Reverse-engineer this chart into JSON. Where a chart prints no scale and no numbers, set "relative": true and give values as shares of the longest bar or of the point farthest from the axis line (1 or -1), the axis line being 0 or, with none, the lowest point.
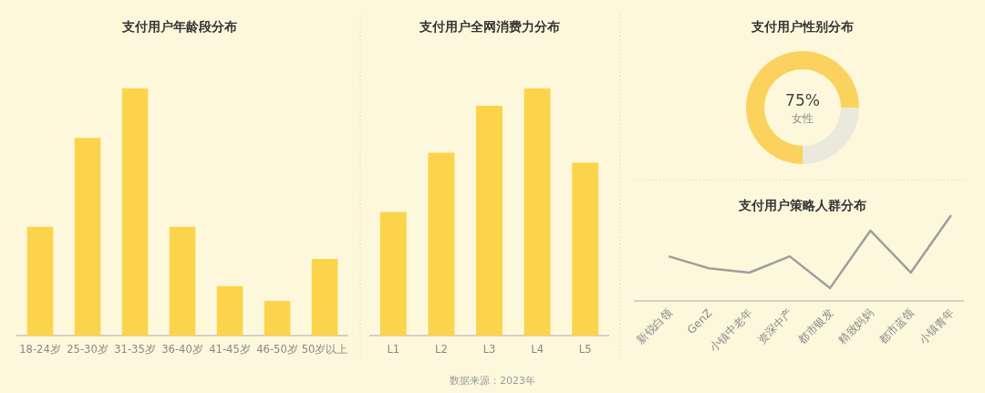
{
  "chart_data": [
    {
      "type": "bar",
      "title": "支付用户年龄段分布",
      "categories": [
        "18-24岁",
        "25-30岁",
        "31-35岁",
        "36-40岁",
        "41-45岁",
        "46-50岁",
        "50岁以上"
      ],
      "values": [
        0.44,
        0.8,
        1,
        0.44,
        0.2,
        0.14,
        0.31
      ],
      "color": "#fcd44c",
      "relative": true
    },
    {
      "type": "bar",
      "title": "支付用户全网消费力分布",
      "categories": [
        "L1",
        "L2",
        "L3",
        "L4",
        "L5"
      ],
      "values": [
        0.5,
        0.74,
        0.93,
        1,
        0.7
      ],
      "color": "#fcd44c",
      "relative": true,
      "annotations": [
        "数据来源：2023年"
      ]
    },
    {
      "type": "donut",
      "title": "支付用户性别分布",
      "categories": [
        "女性",
        null
      ],
      "values": [
        75,
        25
      ],
      "colors": [
        "#fbd25e",
        "#ebe8dc"
      ],
      "value_labels": [
        "75%",
        null
      ]
    },
    {
      "type": "line",
      "title": "支付用户策略人群分布",
      "categories": [
        "新锐白领",
        "GenZ",
        "小镇中老年",
        "资深中产",
        "都市银发",
        "精致妈妈",
        "都市蓝领",
        "小镇青年"
      ],
      "values": [
        0.52,
        0.38,
        0.33,
        0.52,
        0.15,
        0.82,
        0.33,
        1
      ],
      "color": "#a09e9a",
      "relative": true
    }
  ]
}
